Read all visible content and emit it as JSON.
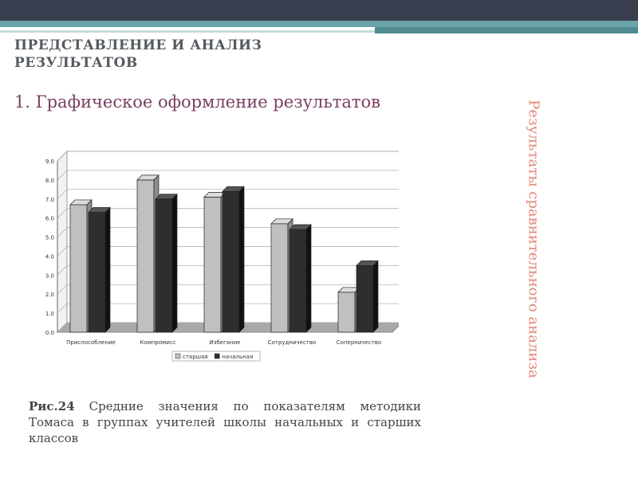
{
  "slide": {
    "title_line1": "ПРЕДСТАВЛЕНИЕ И АНАЛИЗ",
    "title_line2": "РЕЗУЛЬТАТОВ",
    "subtitle": "1. Графическое оформление результатов",
    "side_text": "Результаты сравнительного анализа",
    "caption_label": "Рис.24",
    "caption_text": "Средние значения по показателям методики Томаса в группах учителей школы начальных и старших классов"
  },
  "colors": {
    "accent_dark": "#3a3f4f",
    "accent_teal": "#6aa3a8",
    "subtitle": "#7a3f62",
    "side_text": "#e08a7a",
    "series_light": "#c0c0c0",
    "series_dark": "#2e2e2e"
  },
  "chart_data": {
    "type": "bar",
    "title": "",
    "xlabel": "",
    "ylabel": "",
    "categories": [
      "Приспособление",
      "Компромисс",
      "Избегание",
      "Сотрудничество",
      "Соперничество"
    ],
    "series": [
      {
        "name": "старшая",
        "values": [
          6.7,
          8.0,
          7.1,
          5.7,
          2.1
        ]
      },
      {
        "name": "начальная",
        "values": [
          6.3,
          7.0,
          7.4,
          5.4,
          3.5
        ]
      }
    ],
    "ylim": [
      0,
      9
    ],
    "yticks": [
      "0.0",
      "1.0",
      "2.0",
      "3.0",
      "4.0",
      "5.0",
      "6.0",
      "7.0",
      "8.0",
      "9.0"
    ],
    "grid": true,
    "legend": "bottom"
  }
}
